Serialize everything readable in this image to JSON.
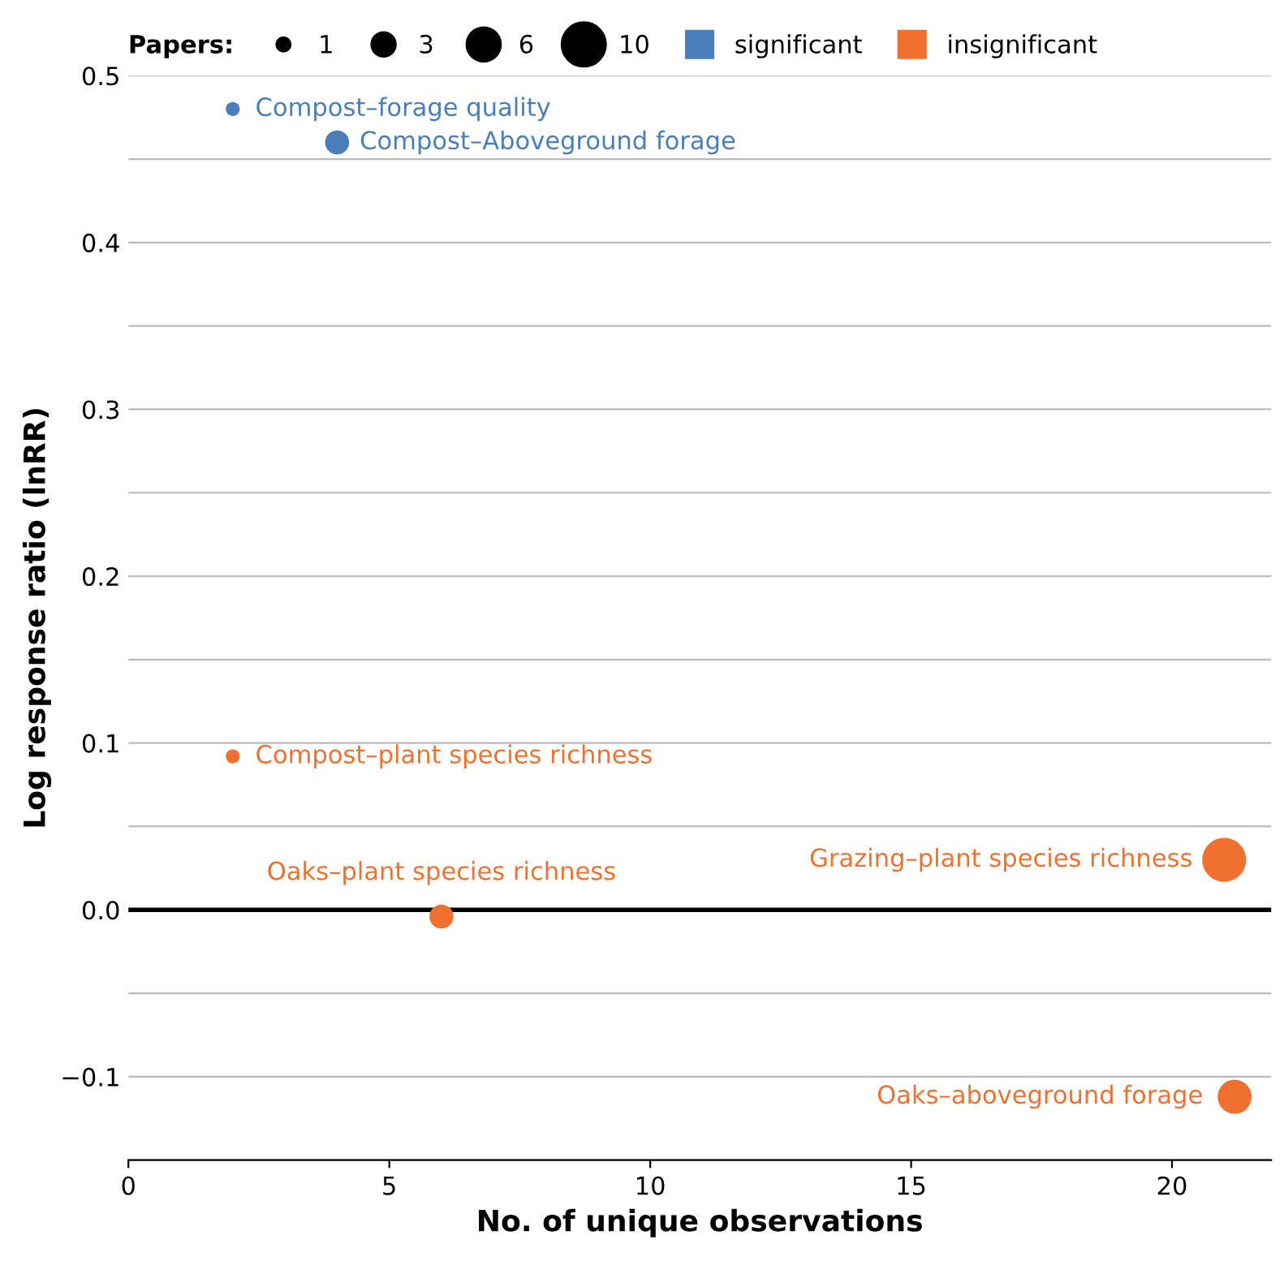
{
  "chart_data": {
    "type": "bubble",
    "xlabel": "No. of unique observations",
    "ylabel": "Log response ratio (lnRR)",
    "legend_title": "Papers:",
    "size_legend": [
      1,
      3,
      6,
      10
    ],
    "legend": "top",
    "grid": "y",
    "xlim": [
      0,
      21.9
    ],
    "xticks": [
      0,
      5,
      10,
      15,
      20
    ],
    "ylim": [
      -0.15,
      0.5
    ],
    "yticks": [
      {
        "value": -0.15,
        "label": null
      },
      {
        "value": -0.1,
        "label": "−0.1"
      },
      {
        "value": -0.05,
        "label": null
      },
      {
        "value": 0.0,
        "label": "0.0"
      },
      {
        "value": 0.05,
        "label": null
      },
      0.1,
      {
        "value": 0.15,
        "label": null
      },
      0.2,
      {
        "value": 0.25,
        "label": null
      },
      0.3,
      {
        "value": 0.35,
        "label": null
      },
      0.4,
      {
        "value": 0.45,
        "label": null
      },
      0.5
    ],
    "ref_lines": [
      {
        "axis": "y",
        "value": 0,
        "color": "#000000"
      }
    ],
    "series": [
      {
        "name": "significant",
        "color": "#4a7ebb",
        "x": [
          2,
          4
        ],
        "values": [
          0.48,
          0.46
        ],
        "sizes": [
          1,
          3
        ]
      },
      {
        "name": "insignificant",
        "color": "#f07030",
        "x": [
          2,
          6,
          21,
          21.2
        ],
        "values": [
          0.092,
          -0.004,
          0.03,
          -0.112
        ],
        "sizes": [
          1,
          3,
          10,
          6
        ]
      }
    ],
    "annotations": [
      {
        "text": "Compost–forage quality",
        "x": 2,
        "y": 0.48
      },
      {
        "text": "Compost–Aboveground forage",
        "x": 4,
        "y": 0.46
      },
      {
        "text": "Compost–plant species richness",
        "x": 2,
        "y": 0.092
      },
      {
        "text": "Oaks–plant species richness",
        "x": 6,
        "y": -0.004
      },
      {
        "text": "Grazing–plant species richness",
        "x": 21,
        "y": 0.03
      },
      {
        "text": "Oaks–aboveground forage",
        "x": 21.2,
        "y": -0.112
      }
    ]
  }
}
